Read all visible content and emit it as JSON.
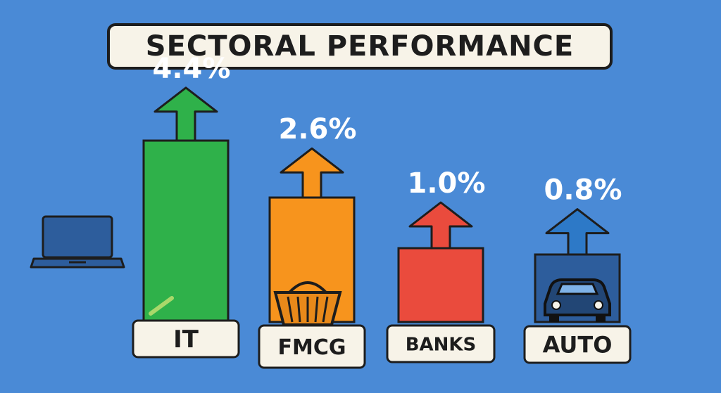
{
  "chart_data": {
    "type": "bar",
    "title": "SECTORAL PERFORMANCE",
    "categories": [
      "IT",
      "FMCG",
      "BANKS",
      "AUTO"
    ],
    "values": [
      4.4,
      2.6,
      1.0,
      0.8
    ],
    "value_labels": [
      "4.4%",
      "2.6%",
      "1.0%",
      "0.8%"
    ],
    "colors": [
      "#2fb14a",
      "#f7941d",
      "#ea4b3d",
      "#2d5d9c"
    ],
    "arrow_colors": [
      "#2fb14a",
      "#f7941d",
      "#ea4b3d",
      "#2d79c7"
    ],
    "icons": [
      "laptop-icon",
      "shopping-basket-icon",
      "",
      "car-icon"
    ],
    "grid": false,
    "legend": "none"
  }
}
